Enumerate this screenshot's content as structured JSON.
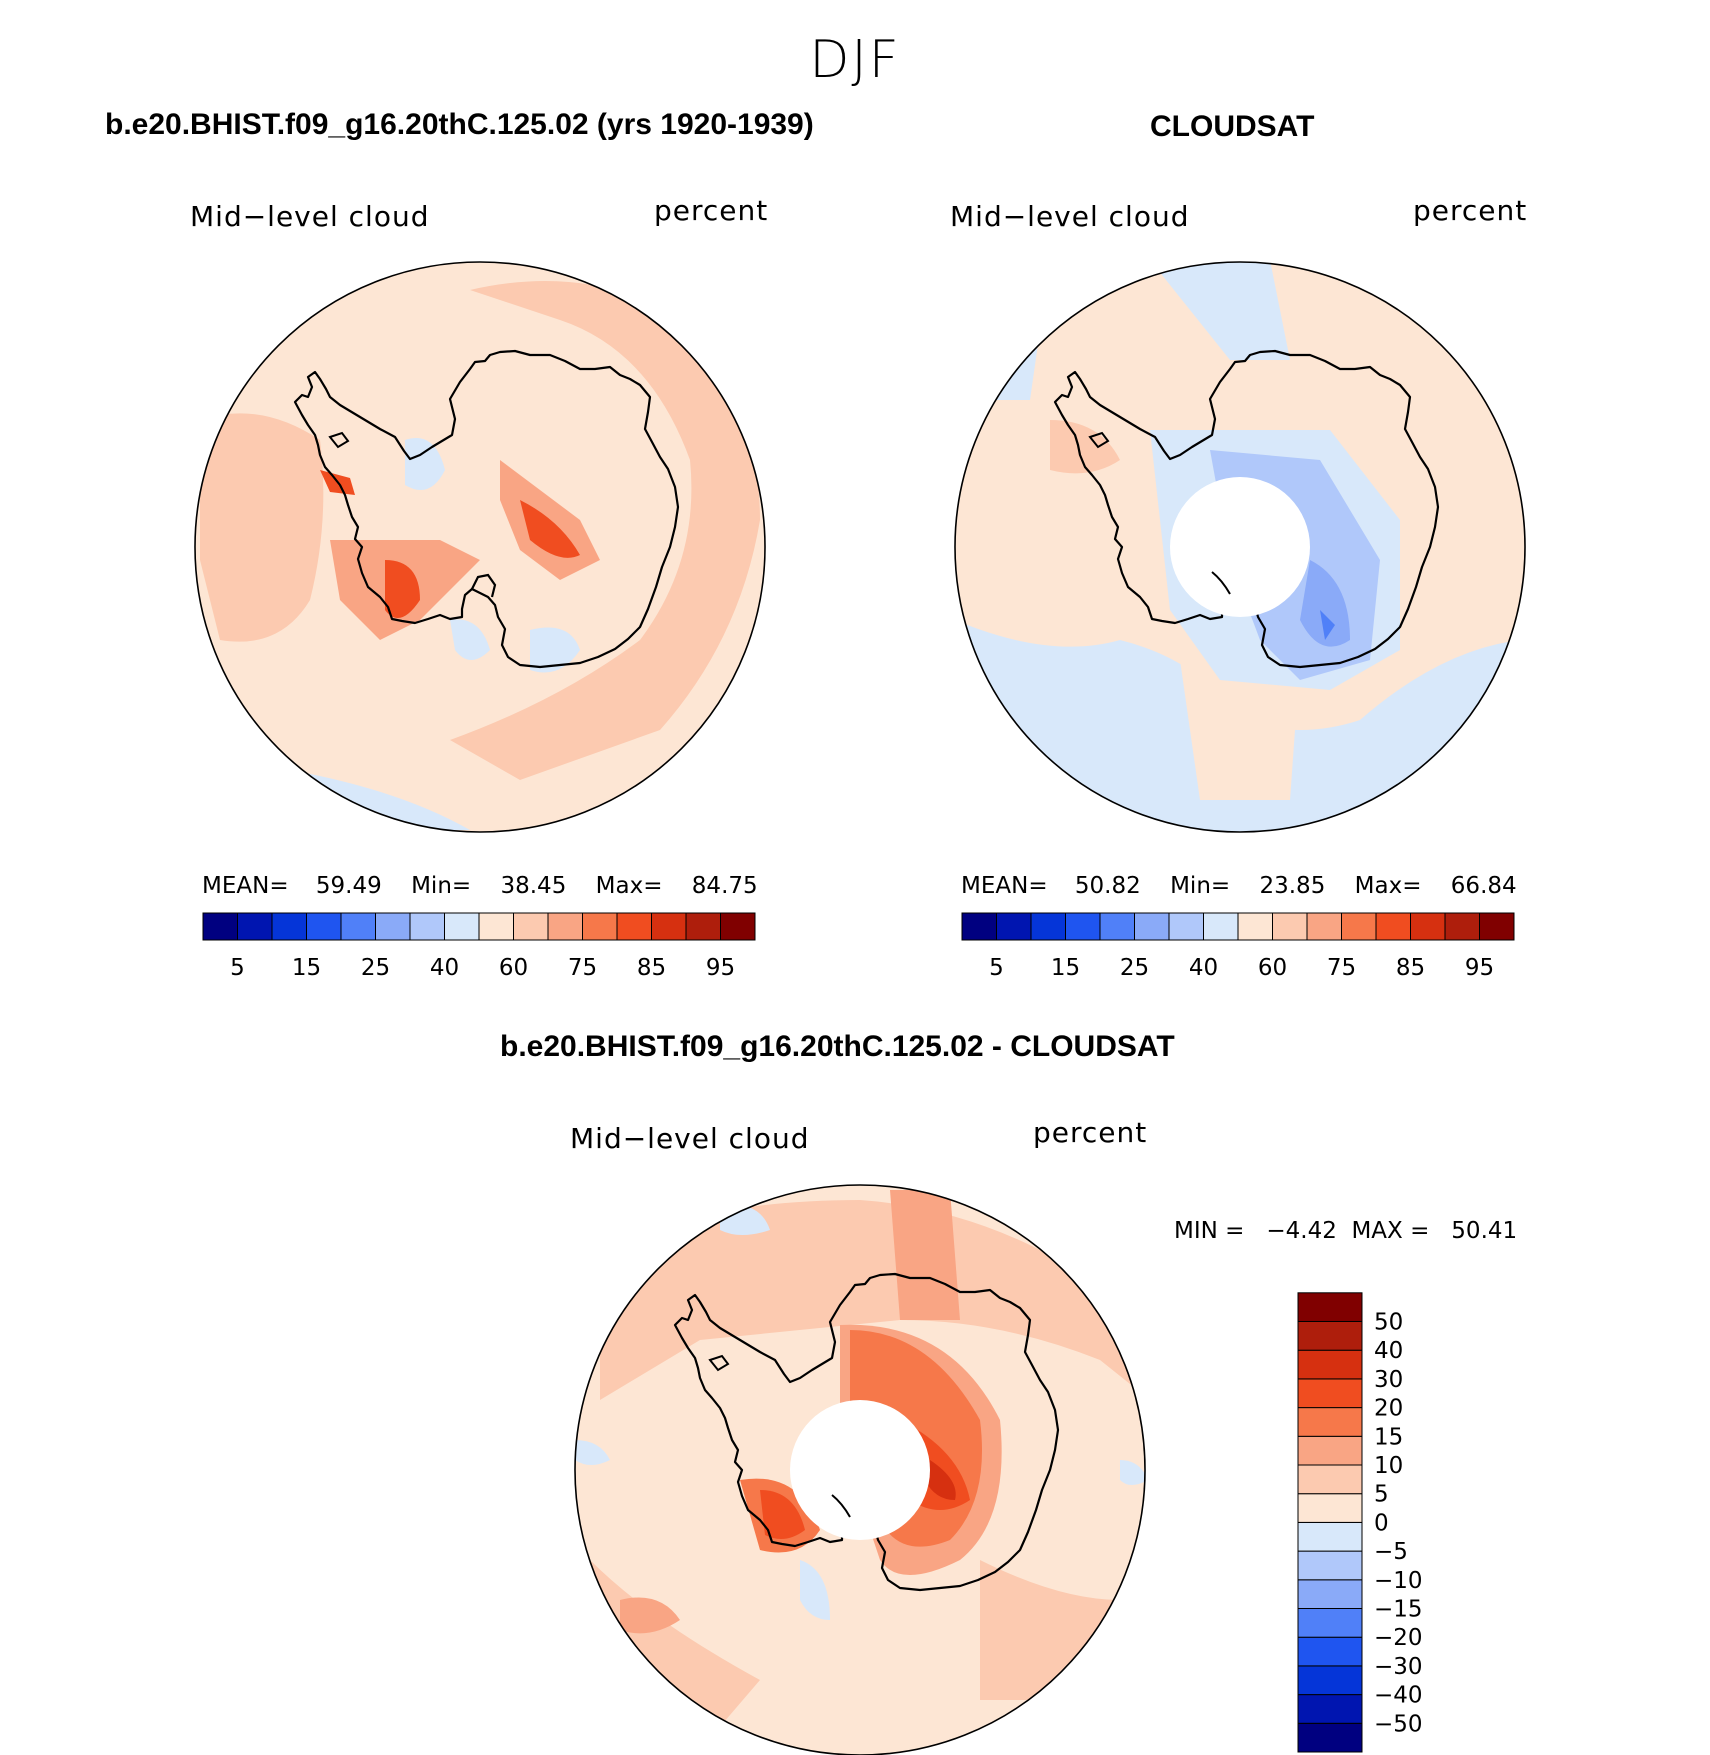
{
  "figure": {
    "season": "DJF"
  },
  "panels": [
    {
      "title": "b.e20.BHIST.f09_g16.20thC.125.02 (yrs 1920-1939)",
      "variable": "Mid−level cloud",
      "units": "percent",
      "stats": {
        "mean_label": "MEAN=",
        "mean": "59.49",
        "min_label": "Min=",
        "min": "38.45",
        "max_label": "Max=",
        "max": "84.75"
      }
    },
    {
      "title": "CLOUDSAT",
      "variable": "Mid−level cloud",
      "units": "percent",
      "stats": {
        "mean_label": "MEAN=",
        "mean": "50.82",
        "min_label": "Min=",
        "min": "23.85",
        "max_label": "Max=",
        "max": "66.84"
      }
    },
    {
      "title": "b.e20.BHIST.f09_g16.20thC.125.02 - CLOUDSAT",
      "variable": "Mid−level cloud",
      "units": "percent",
      "stats_text": "MIN =   −4.42  MAX =   50.41"
    }
  ],
  "colorbars": {
    "absolute": {
      "colors": [
        "#000080",
        "#0015b0",
        "#0535d8",
        "#1f55f0",
        "#5080f8",
        "#8aaaf8",
        "#b0c8fa",
        "#d8e8fa",
        "#fde6d4",
        "#fccab0",
        "#f9a584",
        "#f6784a",
        "#f04d20",
        "#d63010",
        "#ae1e0c",
        "#800000"
      ],
      "tick_labels": [
        "5",
        "15",
        "25",
        "40",
        "60",
        "75",
        "85",
        "95"
      ]
    },
    "difference": {
      "colors": [
        "#000080",
        "#0015b0",
        "#0535d8",
        "#1f55f0",
        "#5080f8",
        "#8aaaf8",
        "#b0c8fa",
        "#d8e8fa",
        "#fde6d4",
        "#fccab0",
        "#f9a584",
        "#f6784a",
        "#f04d20",
        "#d63010",
        "#ae1e0c",
        "#800000"
      ],
      "tick_labels": [
        "−50",
        "−40",
        "−30",
        "−20",
        "−15",
        "−10",
        "−5",
        "0",
        "5",
        "10",
        "15",
        "20",
        "30",
        "40",
        "50"
      ]
    }
  }
}
